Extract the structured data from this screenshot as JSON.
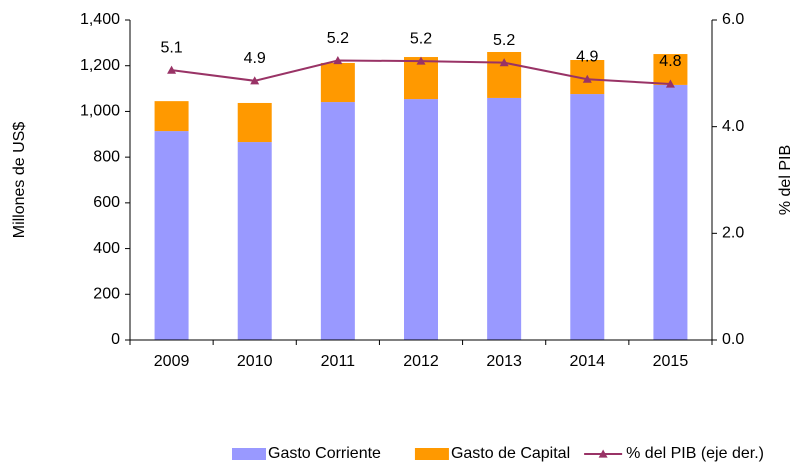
{
  "chart_data": {
    "type": "bar_line",
    "categories": [
      "2009",
      "2010",
      "2011",
      "2012",
      "2013",
      "2014",
      "2015"
    ],
    "series": [
      {
        "name": "Gasto Corriente",
        "color": "#9999ff",
        "values": [
          914,
          866,
          1041,
          1054,
          1059,
          1076,
          1116
        ]
      },
      {
        "name": "Gasto de Capital",
        "color": "#ff9900",
        "values": [
          131,
          171,
          171,
          184,
          201,
          149,
          135
        ]
      },
      {
        "name": "% del PIB (eje der.)",
        "color": "#993366",
        "axis": "y2",
        "values": [
          5.06,
          4.86,
          5.24,
          5.23,
          5.2,
          4.89,
          4.8
        ],
        "value_labels": [
          "5.1",
          "4.9",
          "5.2",
          "5.2",
          "5.2",
          "4.9",
          "4.8"
        ]
      }
    ],
    "ylabel": "Millones de US$",
    "y2label": "% del PIB",
    "ylim": [
      0,
      1400
    ],
    "yticks": [
      0,
      200,
      400,
      600,
      800,
      {
        "value": 1000,
        "label": "1,000"
      },
      {
        "value": 1200,
        "label": "1,200"
      },
      {
        "value": 1400,
        "label": "1,400"
      }
    ],
    "y2lim": [
      0,
      6
    ],
    "y2ticks": [
      {
        "value": 0,
        "label": "0.0"
      },
      {
        "value": 2,
        "label": "2.0"
      },
      {
        "value": 4,
        "label": "4.0"
      },
      {
        "value": 6,
        "label": "6.0"
      }
    ],
    "legend": "bottom"
  }
}
